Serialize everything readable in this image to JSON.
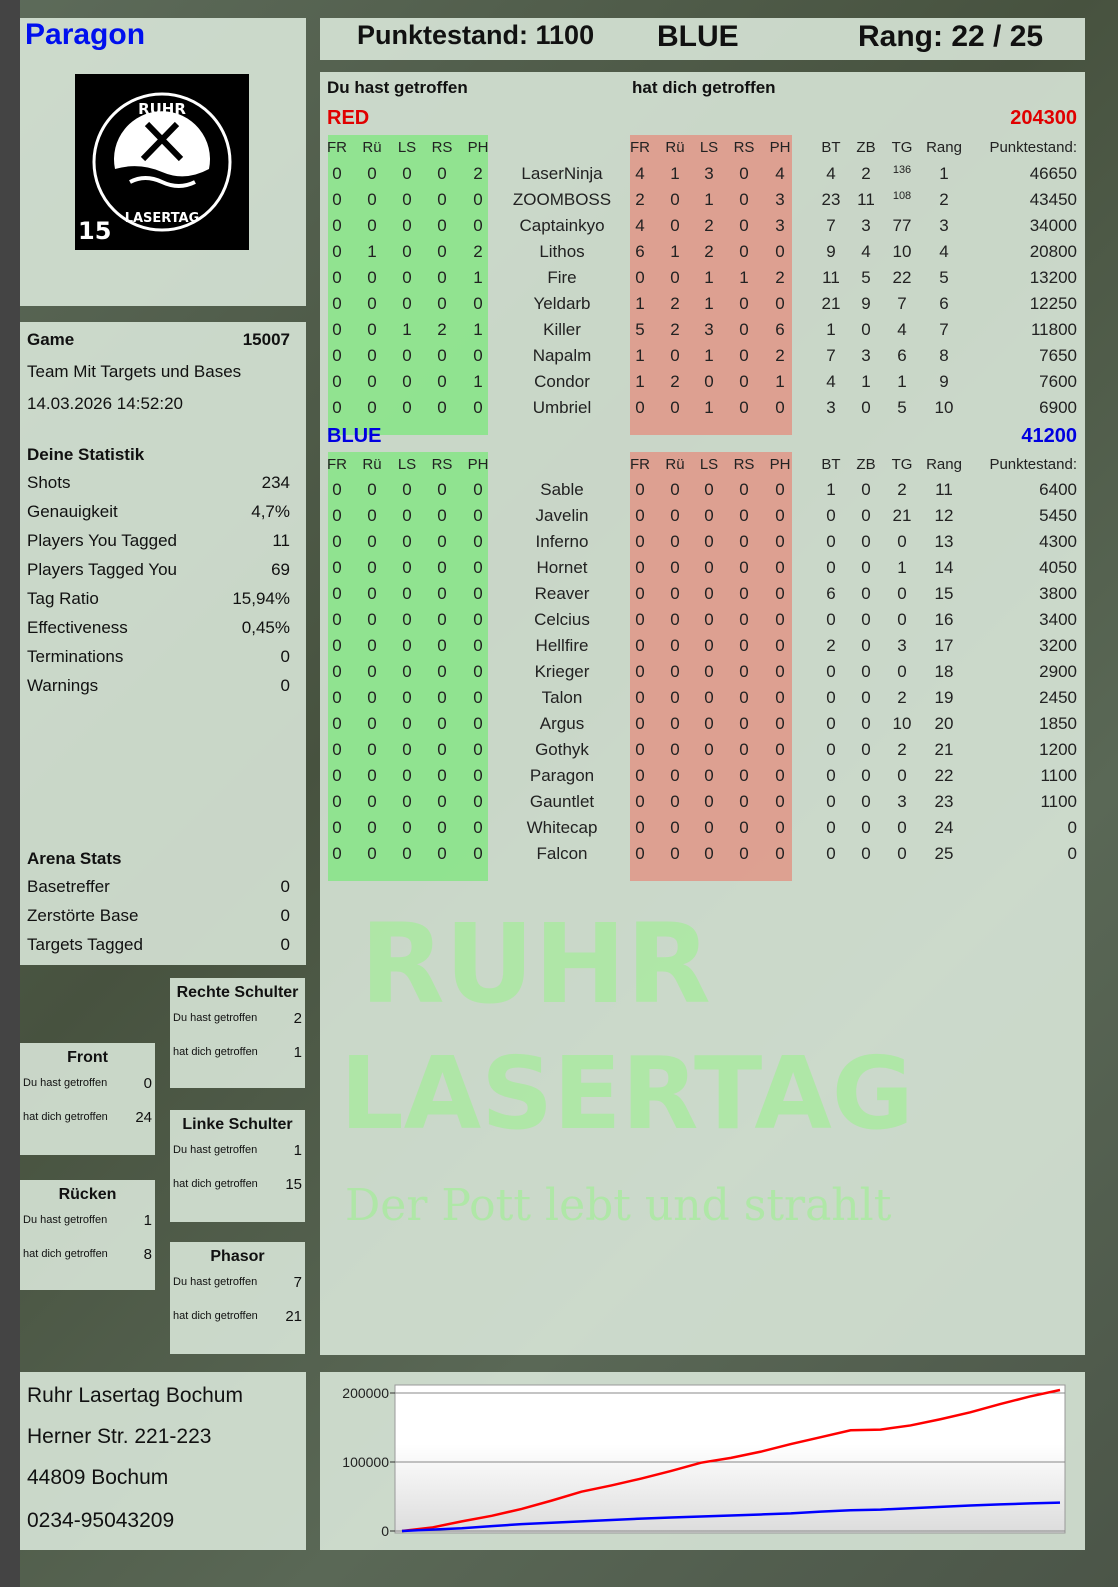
{
  "header": {
    "player_name": "Paragon",
    "score_label": "Punktestand: 1100",
    "team": "BLUE",
    "rank": "Rang: 22 / 25"
  },
  "logo": {
    "text": "RUHR LASERTAG",
    "badge": "15"
  },
  "watermark": {
    "line1": "RUHR",
    "line2": "LASERTAG",
    "line3": "Der Pott lebt und strahlt"
  },
  "game": {
    "label": "Game",
    "id": "15007",
    "mode": "Team Mit Targets und Bases",
    "datetime": "14.03.2026 14:52:20"
  },
  "stats": {
    "title": "Deine Statistik",
    "items": [
      {
        "label": "Shots",
        "value": "234"
      },
      {
        "label": "Genauigkeit",
        "value": "4,7%"
      },
      {
        "label": "Players You Tagged",
        "value": "11"
      },
      {
        "label": "Players Tagged You",
        "value": "69"
      },
      {
        "label": "Tag Ratio",
        "value": "15,94%"
      },
      {
        "label": "Effectiveness",
        "value": "0,45%"
      },
      {
        "label": "Terminations",
        "value": "0"
      },
      {
        "label": "Warnings",
        "value": "0"
      }
    ]
  },
  "arena": {
    "title": "Arena Stats",
    "items": [
      {
        "label": "Basetreffer",
        "value": "0"
      },
      {
        "label": "Zerstörte Base",
        "value": "0"
      },
      {
        "label": "Targets Tagged",
        "value": "0"
      }
    ]
  },
  "zones": [
    {
      "title": "Rechte Schulter",
      "hit_label": "Du hast getroffen",
      "hit": "2",
      "got_label": "hat dich getroffen",
      "got": "1"
    },
    {
      "title": "Front",
      "hit_label": "Du hast getroffen",
      "hit": "0",
      "got_label": "hat dich getroffen",
      "got": "24"
    },
    {
      "title": "Linke Schulter",
      "hit_label": "Du hast getroffen",
      "hit": "1",
      "got_label": "hat dich getroffen",
      "got": "15"
    },
    {
      "title": "Rücken",
      "hit_label": "Du hast getroffen",
      "hit": "1",
      "got_label": "hat dich getroffen",
      "got": "8"
    },
    {
      "title": "Phasor",
      "hit_label": "Du hast getroffen",
      "hit": "7",
      "got_label": "hat dich getroffen",
      "got": "21"
    }
  ],
  "address": {
    "line1": "Ruhr Lasertag Bochum",
    "line2": "Herner Str. 221-223",
    "line3": "44809 Bochum",
    "phone": "0234-95043209"
  },
  "table": {
    "you_hit": "Du hast getroffen",
    "hit_you": "hat dich getroffen",
    "columns": [
      "FR",
      "Rü",
      "LS",
      "RS",
      "PH",
      "",
      "FR",
      "Rü",
      "LS",
      "RS",
      "PH",
      "BT",
      "ZB",
      "TG",
      "Rang",
      "Punktestand:"
    ],
    "teams": [
      {
        "name": "RED",
        "score": "204300",
        "color": "#e00000",
        "rows": [
          [
            "0",
            "0",
            "0",
            "0",
            "2",
            "LaserNinja",
            "4",
            "1",
            "3",
            "0",
            "4",
            "4",
            "2",
            "136",
            "1",
            "46650"
          ],
          [
            "0",
            "0",
            "0",
            "0",
            "0",
            "ZOOMBOSS",
            "2",
            "0",
            "1",
            "0",
            "3",
            "23",
            "11",
            "108",
            "2",
            "43450"
          ],
          [
            "0",
            "0",
            "0",
            "0",
            "0",
            "Captainkyo",
            "4",
            "0",
            "2",
            "0",
            "3",
            "7",
            "3",
            "77",
            "3",
            "34000"
          ],
          [
            "0",
            "1",
            "0",
            "0",
            "2",
            "Lithos",
            "6",
            "1",
            "2",
            "0",
            "0",
            "9",
            "4",
            "10",
            "4",
            "20800"
          ],
          [
            "0",
            "0",
            "0",
            "0",
            "1",
            "Fire",
            "0",
            "0",
            "1",
            "1",
            "2",
            "11",
            "5",
            "22",
            "5",
            "13200"
          ],
          [
            "0",
            "0",
            "0",
            "0",
            "0",
            "Yeldarb",
            "1",
            "2",
            "1",
            "0",
            "0",
            "21",
            "9",
            "7",
            "6",
            "12250"
          ],
          [
            "0",
            "0",
            "1",
            "2",
            "1",
            "Killer",
            "5",
            "2",
            "3",
            "0",
            "6",
            "1",
            "0",
            "4",
            "7",
            "11800"
          ],
          [
            "0",
            "0",
            "0",
            "0",
            "0",
            "Napalm",
            "1",
            "0",
            "1",
            "0",
            "2",
            "7",
            "3",
            "6",
            "8",
            "7650"
          ],
          [
            "0",
            "0",
            "0",
            "0",
            "1",
            "Condor",
            "1",
            "2",
            "0",
            "0",
            "1",
            "4",
            "1",
            "1",
            "9",
            "7600"
          ],
          [
            "0",
            "0",
            "0",
            "0",
            "0",
            "Umbriel",
            "0",
            "0",
            "1",
            "0",
            "0",
            "3",
            "0",
            "5",
            "10",
            "6900"
          ]
        ]
      },
      {
        "name": "BLUE",
        "score": "41200",
        "color": "#0000e0",
        "rows": [
          [
            "0",
            "0",
            "0",
            "0",
            "0",
            "Sable",
            "0",
            "0",
            "0",
            "0",
            "0",
            "1",
            "0",
            "2",
            "11",
            "6400"
          ],
          [
            "0",
            "0",
            "0",
            "0",
            "0",
            "Javelin",
            "0",
            "0",
            "0",
            "0",
            "0",
            "0",
            "0",
            "21",
            "12",
            "5450"
          ],
          [
            "0",
            "0",
            "0",
            "0",
            "0",
            "Inferno",
            "0",
            "0",
            "0",
            "0",
            "0",
            "0",
            "0",
            "0",
            "13",
            "4300"
          ],
          [
            "0",
            "0",
            "0",
            "0",
            "0",
            "Hornet",
            "0",
            "0",
            "0",
            "0",
            "0",
            "0",
            "0",
            "1",
            "14",
            "4050"
          ],
          [
            "0",
            "0",
            "0",
            "0",
            "0",
            "Reaver",
            "0",
            "0",
            "0",
            "0",
            "0",
            "6",
            "0",
            "0",
            "15",
            "3800"
          ],
          [
            "0",
            "0",
            "0",
            "0",
            "0",
            "Celcius",
            "0",
            "0",
            "0",
            "0",
            "0",
            "0",
            "0",
            "0",
            "16",
            "3400"
          ],
          [
            "0",
            "0",
            "0",
            "0",
            "0",
            "Hellfire",
            "0",
            "0",
            "0",
            "0",
            "0",
            "2",
            "0",
            "3",
            "17",
            "3200"
          ],
          [
            "0",
            "0",
            "0",
            "0",
            "0",
            "Krieger",
            "0",
            "0",
            "0",
            "0",
            "0",
            "0",
            "0",
            "0",
            "18",
            "2900"
          ],
          [
            "0",
            "0",
            "0",
            "0",
            "0",
            "Talon",
            "0",
            "0",
            "0",
            "0",
            "0",
            "0",
            "0",
            "2",
            "19",
            "2450"
          ],
          [
            "0",
            "0",
            "0",
            "0",
            "0",
            "Argus",
            "0",
            "0",
            "0",
            "0",
            "0",
            "0",
            "0",
            "10",
            "20",
            "1850"
          ],
          [
            "0",
            "0",
            "0",
            "0",
            "0",
            "Gothyk",
            "0",
            "0",
            "0",
            "0",
            "0",
            "0",
            "0",
            "2",
            "21",
            "1200"
          ],
          [
            "0",
            "0",
            "0",
            "0",
            "0",
            "Paragon",
            "0",
            "0",
            "0",
            "0",
            "0",
            "0",
            "0",
            "0",
            "22",
            "1100"
          ],
          [
            "0",
            "0",
            "0",
            "0",
            "0",
            "Gauntlet",
            "0",
            "0",
            "0",
            "0",
            "0",
            "0",
            "0",
            "3",
            "23",
            "1100"
          ],
          [
            "0",
            "0",
            "0",
            "0",
            "0",
            "Whitecap",
            "0",
            "0",
            "0",
            "0",
            "0",
            "0",
            "0",
            "0",
            "24",
            "0"
          ],
          [
            "0",
            "0",
            "0",
            "0",
            "0",
            "Falcon",
            "0",
            "0",
            "0",
            "0",
            "0",
            "0",
            "0",
            "0",
            "25",
            "0"
          ]
        ]
      }
    ]
  },
  "chart_data": {
    "type": "line",
    "ylim": [
      0,
      210000
    ],
    "yticks": [
      "0",
      "100000",
      "200000"
    ],
    "grid": true,
    "series": [
      {
        "color": "#ff0000",
        "values": [
          0,
          5000,
          14000,
          22000,
          32000,
          44000,
          57000,
          66000,
          76000,
          87000,
          99000,
          106000,
          115000,
          126000,
          136000,
          146000,
          147000,
          153000,
          162000,
          172000,
          184000,
          195000,
          204300
        ]
      },
      {
        "color": "#0000ff",
        "values": [
          0,
          2000,
          4000,
          7000,
          10000,
          12000,
          14000,
          16000,
          18000,
          19500,
          21000,
          22500,
          24000,
          25500,
          28000,
          30000,
          31000,
          33000,
          35000,
          37000,
          38500,
          40000,
          41200
        ]
      }
    ]
  }
}
